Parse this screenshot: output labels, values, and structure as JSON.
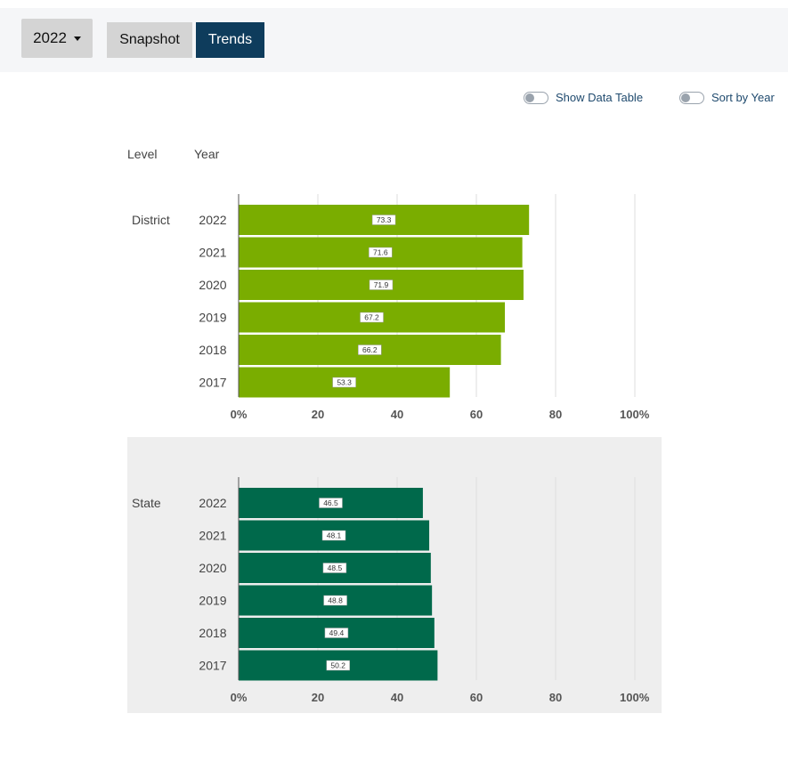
{
  "toolbar": {
    "year_value": "2022",
    "tabs": {
      "snapshot": "Snapshot",
      "trends": "Trends"
    }
  },
  "toggles": {
    "show_data_table": "Show Data Table",
    "sort_by_year": "Sort by Year"
  },
  "headers": {
    "level": "Level",
    "year": "Year"
  },
  "colors": {
    "district_bar": "#7aad00",
    "state_bar": "#00694b",
    "trends_tab": "#0e3c5c",
    "state_panel_bg": "#eeeeee"
  },
  "chart_data": [
    {
      "type": "bar",
      "orientation": "horizontal",
      "level": "District",
      "categories": [
        "2022",
        "2021",
        "2020",
        "2019",
        "2018",
        "2017"
      ],
      "values": [
        73.3,
        71.6,
        71.9,
        67.2,
        66.2,
        53.3
      ],
      "data_labels": [
        "73.3",
        "71.6",
        "71.9",
        "67.2",
        "66.2",
        "53.3"
      ],
      "xlim": [
        0,
        100
      ],
      "xticks": [
        "0%",
        "20",
        "40",
        "60",
        "80",
        "100%"
      ],
      "grid": true
    },
    {
      "type": "bar",
      "orientation": "horizontal",
      "level": "State",
      "categories": [
        "2022",
        "2021",
        "2020",
        "2019",
        "2018",
        "2017"
      ],
      "values": [
        46.5,
        48.1,
        48.5,
        48.8,
        49.4,
        50.2
      ],
      "data_labels": [
        "46.5",
        "48.1",
        "48.5",
        "48.8",
        "49.4",
        "50.2"
      ],
      "xlim": [
        0,
        100
      ],
      "xticks": [
        "0%",
        "20",
        "40",
        "60",
        "80",
        "100%"
      ],
      "grid": true
    }
  ]
}
